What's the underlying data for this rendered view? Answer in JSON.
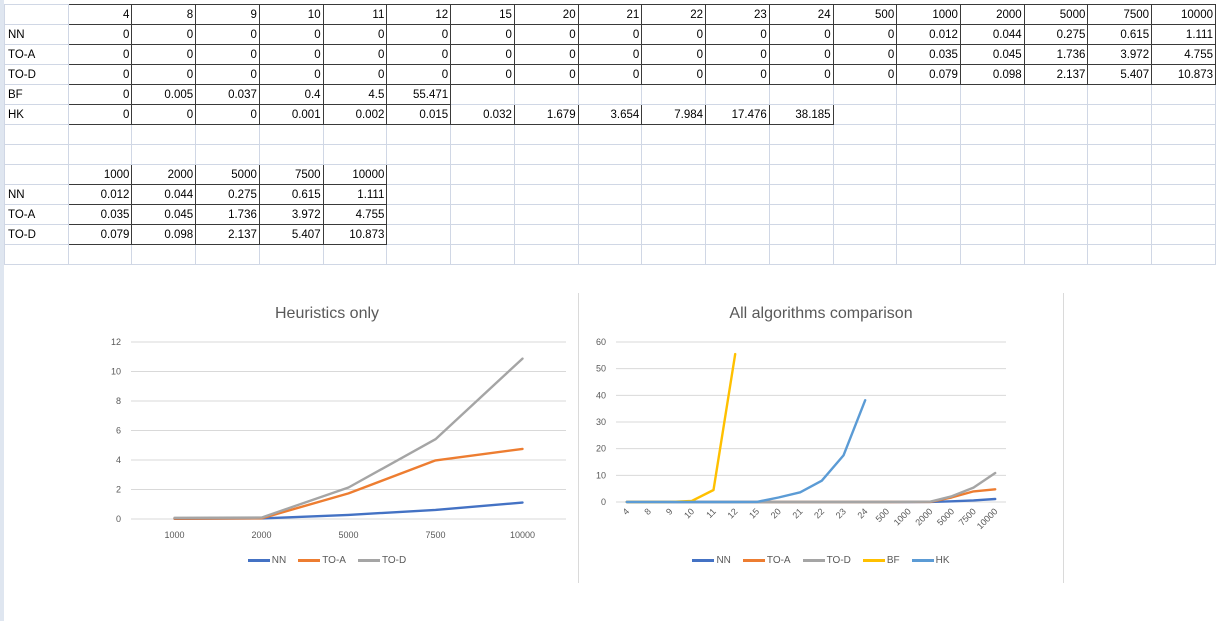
{
  "sheet": {
    "rows": [
      [
        "",
        "4",
        "8",
        "9",
        "10",
        "11",
        "12",
        "15",
        "20",
        "21",
        "22",
        "23",
        "24",
        "500",
        "1000",
        "2000",
        "5000",
        "7500",
        "10000"
      ],
      [
        "NN",
        "0",
        "0",
        "0",
        "0",
        "0",
        "0",
        "0",
        "0",
        "0",
        "0",
        "0",
        "0",
        "0",
        "0.012",
        "0.044",
        "0.275",
        "0.615",
        "1.111"
      ],
      [
        "TO-A",
        "0",
        "0",
        "0",
        "0",
        "0",
        "0",
        "0",
        "0",
        "0",
        "0",
        "0",
        "0",
        "0",
        "0.035",
        "0.045",
        "1.736",
        "3.972",
        "4.755"
      ],
      [
        "TO-D",
        "0",
        "0",
        "0",
        "0",
        "0",
        "0",
        "0",
        "0",
        "0",
        "0",
        "0",
        "0",
        "0",
        "0.079",
        "0.098",
        "2.137",
        "5.407",
        "10.873"
      ],
      [
        "BF",
        "0",
        "0.005",
        "0.037",
        "0.4",
        "4.5",
        "55.471",
        "",
        "",
        "",
        "",
        "",
        "",
        "",
        "",
        "",
        "",
        "",
        ""
      ],
      [
        "HK",
        "0",
        "0",
        "0",
        "0.001",
        "0.002",
        "0.015",
        "0.032",
        "1.679",
        "3.654",
        "7.984",
        "17.476",
        "38.185",
        "",
        "",
        "",
        "",
        "",
        ""
      ],
      [
        "",
        "",
        "",
        "",
        "",
        "",
        "",
        "",
        "",
        "",
        "",
        "",
        "",
        "",
        "",
        "",
        "",
        "",
        ""
      ],
      [
        "",
        "",
        "",
        "",
        "",
        "",
        "",
        "",
        "",
        "",
        "",
        "",
        "",
        "",
        "",
        "",
        "",
        "",
        ""
      ],
      [
        "",
        "1000",
        "2000",
        "5000",
        "7500",
        "10000",
        "",
        "",
        "",
        "",
        "",
        "",
        "",
        "",
        "",
        "",
        "",
        "",
        ""
      ],
      [
        "NN",
        "0.012",
        "0.044",
        "0.275",
        "0.615",
        "1.111",
        "",
        "",
        "",
        "",
        "",
        "",
        "",
        "",
        "",
        "",
        "",
        "",
        ""
      ],
      [
        "TO-A",
        "0.035",
        "0.045",
        "1.736",
        "3.972",
        "4.755",
        "",
        "",
        "",
        "",
        "",
        "",
        "",
        "",
        "",
        "",
        "",
        "",
        ""
      ],
      [
        "TO-D",
        "0.079",
        "0.098",
        "2.137",
        "5.407",
        "10.873",
        "",
        "",
        "",
        "",
        "",
        "",
        "",
        "",
        "",
        "",
        "",
        "",
        ""
      ],
      [
        "",
        "",
        "",
        "",
        "",
        "",
        "",
        "",
        "",
        "",
        "",
        "",
        "",
        "",
        "",
        "",
        "",
        "",
        ""
      ]
    ]
  },
  "chart_data": [
    {
      "type": "line",
      "title": "Heuristics only",
      "categories": [
        "1000",
        "2000",
        "5000",
        "7500",
        "10000"
      ],
      "yticks": [
        "0",
        "2",
        "4",
        "6",
        "8",
        "10",
        "12"
      ],
      "ylim": [
        0,
        12
      ],
      "grid": true,
      "legend_position": "bottom",
      "series": [
        {
          "name": "NN",
          "color": "#4472c4",
          "values": [
            0.012,
            0.044,
            0.275,
            0.615,
            1.111
          ]
        },
        {
          "name": "TO-A",
          "color": "#ed7d31",
          "values": [
            0.035,
            0.045,
            1.736,
            3.972,
            4.755
          ]
        },
        {
          "name": "TO-D",
          "color": "#a5a5a5",
          "values": [
            0.079,
            0.098,
            2.137,
            5.407,
            10.873
          ]
        }
      ]
    },
    {
      "type": "line",
      "title": "All algorithms comparison",
      "categories": [
        "4",
        "8",
        "9",
        "10",
        "11",
        "12",
        "15",
        "20",
        "21",
        "22",
        "23",
        "24",
        "500",
        "1000",
        "2000",
        "5000",
        "7500",
        "10000"
      ],
      "yticks": [
        "0",
        "10",
        "20",
        "30",
        "40",
        "50",
        "60"
      ],
      "ylim": [
        0,
        60
      ],
      "grid": true,
      "legend_position": "bottom",
      "series": [
        {
          "name": "NN",
          "color": "#4472c4",
          "values": [
            0,
            0,
            0,
            0,
            0,
            0,
            0,
            0,
            0,
            0,
            0,
            0,
            0,
            0.012,
            0.044,
            0.275,
            0.615,
            1.111
          ]
        },
        {
          "name": "TO-A",
          "color": "#ed7d31",
          "values": [
            0,
            0,
            0,
            0,
            0,
            0,
            0,
            0,
            0,
            0,
            0,
            0,
            0,
            0.035,
            0.045,
            1.736,
            3.972,
            4.755
          ]
        },
        {
          "name": "TO-D",
          "color": "#a5a5a5",
          "values": [
            0,
            0,
            0,
            0,
            0,
            0,
            0,
            0,
            0,
            0,
            0,
            0,
            0,
            0.079,
            0.098,
            2.137,
            5.407,
            10.873
          ]
        },
        {
          "name": "BF",
          "color": "#ffc000",
          "values": [
            0,
            0.005,
            0.037,
            0.4,
            4.5,
            55.471,
            null,
            null,
            null,
            null,
            null,
            null,
            null,
            null,
            null,
            null,
            null,
            null
          ]
        },
        {
          "name": "HK",
          "color": "#5b9bd5",
          "values": [
            0,
            0,
            0,
            0.001,
            0.002,
            0.015,
            0.032,
            1.679,
            3.654,
            7.984,
            17.476,
            38.185,
            null,
            null,
            null,
            null,
            null,
            null
          ]
        }
      ]
    }
  ]
}
